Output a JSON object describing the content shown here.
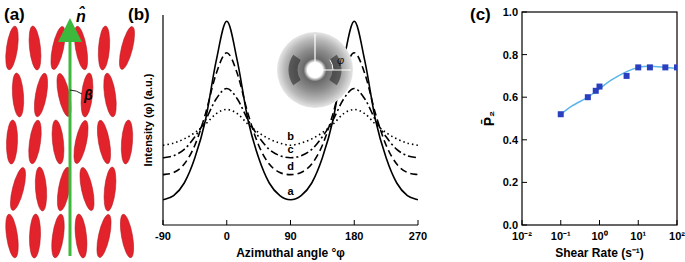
{
  "diagram": {
    "label": "(a)",
    "director": "n̂",
    "angle": "β"
  },
  "chart_data": [
    {
      "type": "line",
      "title": "(b)",
      "x_label": "Azimuthal angle °φ",
      "y_label": "Intensity (φ) (a.u.)",
      "annotations": [
        "φ"
      ],
      "x": [
        -90,
        -75,
        -60,
        -45,
        -30,
        -15,
        0,
        15,
        30,
        45,
        60,
        75,
        90,
        105,
        120,
        135,
        150,
        165,
        180,
        195,
        210,
        225,
        240,
        255,
        270
      ],
      "xlim": [
        -90,
        270
      ],
      "xticks": [
        -90,
        0,
        90,
        180,
        270
      ],
      "ylim": [
        0,
        1
      ],
      "tick_labels": "x",
      "series": [
        {
          "name": "a",
          "color": "#000000",
          "line_style": "solid",
          "values": [
            0.12,
            0.14,
            0.2,
            0.32,
            0.5,
            0.78,
            0.97,
            0.78,
            0.5,
            0.32,
            0.2,
            0.14,
            0.12,
            0.14,
            0.2,
            0.32,
            0.5,
            0.78,
            0.97,
            0.78,
            0.5,
            0.32,
            0.2,
            0.14,
            0.12
          ]
        },
        {
          "name": "b",
          "color": "#000000",
          "line_style": "dotted",
          "values": [
            0.38,
            0.39,
            0.41,
            0.44,
            0.48,
            0.53,
            0.55,
            0.53,
            0.48,
            0.44,
            0.41,
            0.39,
            0.38,
            0.39,
            0.41,
            0.44,
            0.48,
            0.53,
            0.55,
            0.53,
            0.48,
            0.44,
            0.41,
            0.39,
            0.38
          ]
        },
        {
          "name": "c",
          "color": "#000000",
          "line_style": "dashdot",
          "values": [
            0.32,
            0.33,
            0.36,
            0.42,
            0.5,
            0.6,
            0.65,
            0.6,
            0.5,
            0.42,
            0.36,
            0.33,
            0.32,
            0.33,
            0.36,
            0.42,
            0.5,
            0.6,
            0.65,
            0.6,
            0.5,
            0.42,
            0.36,
            0.33,
            0.32
          ]
        },
        {
          "name": "d",
          "color": "#000000",
          "line_style": "dashed",
          "values": [
            0.24,
            0.25,
            0.29,
            0.38,
            0.53,
            0.72,
            0.82,
            0.72,
            0.53,
            0.38,
            0.29,
            0.25,
            0.24,
            0.25,
            0.29,
            0.38,
            0.53,
            0.72,
            0.82,
            0.72,
            0.53,
            0.38,
            0.29,
            0.25,
            0.24
          ]
        }
      ]
    },
    {
      "type": "scatter",
      "title": "(c)",
      "x_label": "Shear Rate (s⁻¹)",
      "y_label": "P̄₂",
      "log": "x",
      "xlim": [
        0.01,
        100
      ],
      "xticks": [
        {
          "value": 0.01,
          "label": "10⁻²"
        },
        {
          "value": 0.1,
          "label": "10⁻¹"
        },
        {
          "value": 1,
          "label": "10⁰"
        },
        {
          "value": 10,
          "label": "10¹"
        },
        {
          "value": 100,
          "label": "10²"
        }
      ],
      "ylim": [
        0,
        1
      ],
      "yticks": [
        {
          "value": 0,
          "label": "0.0"
        },
        0.2,
        0.4,
        0.6,
        0.8,
        {
          "value": 1,
          "label": "1.0"
        }
      ],
      "series": [
        {
          "type": "line",
          "color": "#5bb5e8",
          "line_style": "solid",
          "x": [
            0.1,
            0.2,
            0.5,
            1,
            2,
            5,
            10,
            20,
            50,
            100
          ],
          "values": [
            0.52,
            0.56,
            0.6,
            0.64,
            0.68,
            0.72,
            0.74,
            0.745,
            0.74,
            0.735
          ]
        },
        {
          "type": "scatter",
          "color": "#2a3fbf",
          "marker": "square",
          "x": [
            0.1,
            0.5,
            0.8,
            1,
            5,
            10,
            20,
            50,
            100
          ],
          "values": [
            0.52,
            0.6,
            0.63,
            0.65,
            0.7,
            0.74,
            0.74,
            0.74,
            0.74
          ]
        }
      ]
    }
  ]
}
